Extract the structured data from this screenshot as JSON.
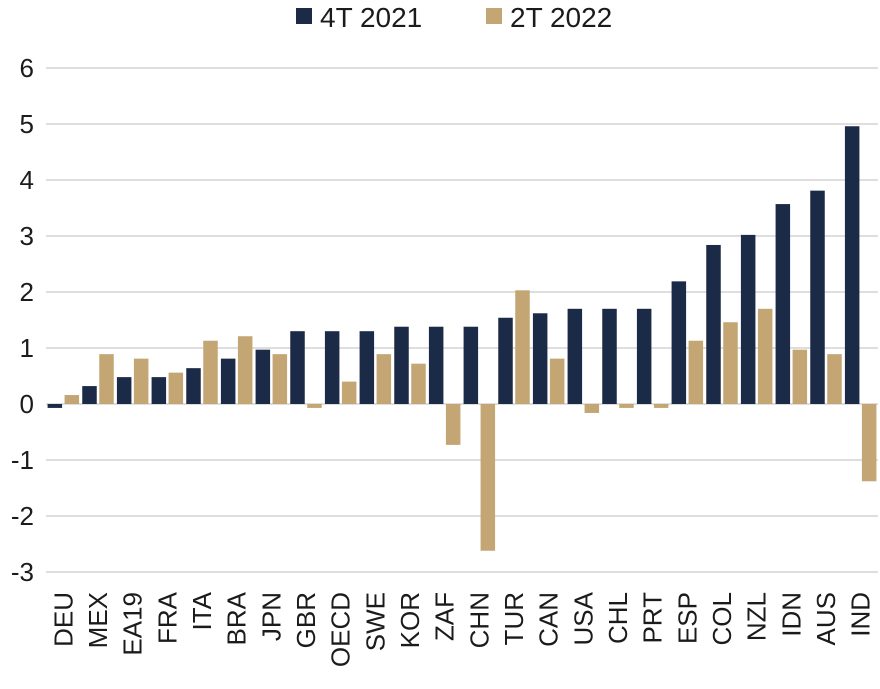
{
  "chart_data": {
    "type": "bar",
    "title": "",
    "xlabel": "",
    "ylabel": "",
    "ylim": [
      -3,
      6
    ],
    "yticks": [
      -3,
      -2,
      -1,
      0,
      1,
      2,
      3,
      4,
      5,
      6
    ],
    "grid": true,
    "legend_position": "top",
    "categories": [
      "DEU",
      "MEX",
      "EA19",
      "FRA",
      "ITA",
      "BRA",
      "JPN",
      "GBR",
      "OECD",
      "SWE",
      "KOR",
      "ZAF",
      "CHN",
      "TUR",
      "CAN",
      "USA",
      "CHL",
      "PRT",
      "ESP",
      "COL",
      "NZL",
      "IDN",
      "AUS",
      "IND"
    ],
    "series": [
      {
        "name": "4T 2021",
        "color": "#1b2a47",
        "values": [
          -0.07,
          0.32,
          0.48,
          0.48,
          0.64,
          0.81,
          0.97,
          1.3,
          1.3,
          1.3,
          1.38,
          1.38,
          1.38,
          1.54,
          1.62,
          1.7,
          1.7,
          1.7,
          2.19,
          2.84,
          3.02,
          3.57,
          3.81,
          4.96
        ]
      },
      {
        "name": "2T 2022",
        "color": "#c4a574",
        "values": [
          0.16,
          0.89,
          0.81,
          0.56,
          1.13,
          1.21,
          0.89,
          -0.07,
          0.4,
          0.89,
          0.72,
          -0.73,
          -2.62,
          2.03,
          0.81,
          -0.16,
          -0.07,
          -0.07,
          1.13,
          1.46,
          1.7,
          0.97,
          0.89,
          -1.38
        ]
      }
    ]
  }
}
